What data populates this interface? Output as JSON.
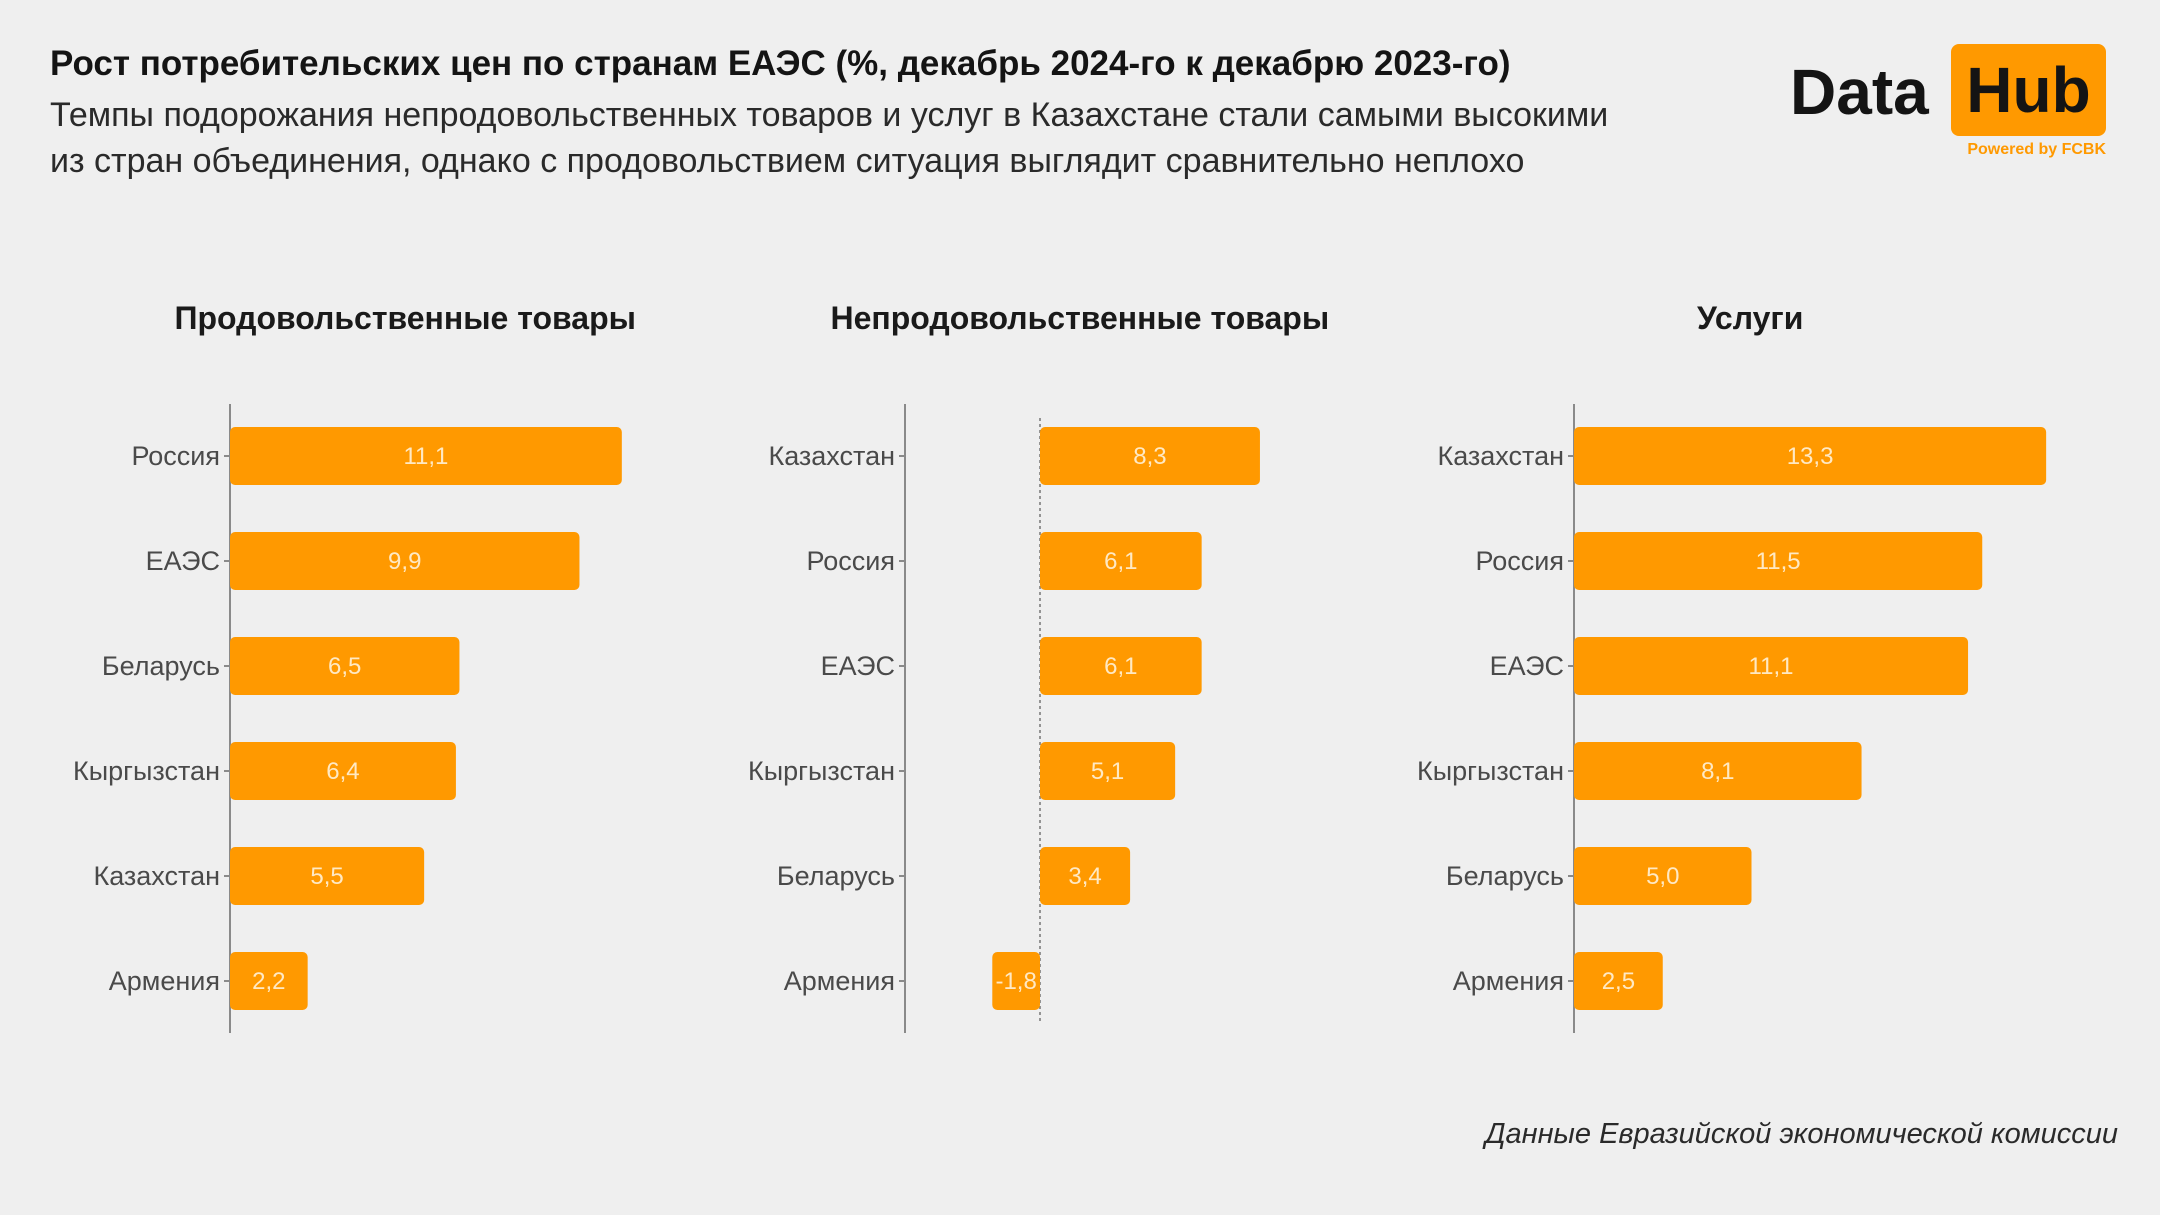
{
  "header": {
    "title": "Рост потребительских цен по странам ЕАЭС (%, декабрь 2024-го к декабрю 2023-го)",
    "subtitle_line1": "Темпы подорожания непродовольственных товаров и услуг в Казахстане стали самыми высокими",
    "subtitle_line2": "из стран объединения, однако с продовольствием ситуация выглядит сравнительно неплохо"
  },
  "logo": {
    "word1": "Data",
    "word2": "Hub",
    "powered": "Powered by FCBK"
  },
  "colors": {
    "bar": "#ff9900",
    "axis": "#8a8a8a",
    "background": "#efefef"
  },
  "chart_data": [
    {
      "type": "bar",
      "orientation": "horizontal",
      "title": "Продовольственные товары",
      "categories": [
        "Россия",
        "ЕАЭС",
        "Беларусь",
        "Кыргызстан",
        "Казахстан",
        "Армения"
      ],
      "values": [
        11.1,
        9.9,
        6.5,
        6.4,
        5.5,
        2.2
      ],
      "value_labels": [
        "11,1",
        "9,9",
        "6,5",
        "6,4",
        "5,5",
        "2,2"
      ]
    },
    {
      "type": "bar",
      "orientation": "horizontal",
      "title": "Непродовольственные товары",
      "categories": [
        "Казахстан",
        "Россия",
        "ЕАЭС",
        "Кыргызстан",
        "Беларусь",
        "Армения"
      ],
      "values": [
        8.3,
        6.1,
        6.1,
        5.1,
        3.4,
        -1.8
      ],
      "value_labels": [
        "8,3",
        "6,1",
        "6,1",
        "5,1",
        "3,4",
        "-1,8"
      ]
    },
    {
      "type": "bar",
      "orientation": "horizontal",
      "title": "Услуги",
      "categories": [
        "Казахстан",
        "Россия",
        "ЕАЭС",
        "Кыргызстан",
        "Беларусь",
        "Армения"
      ],
      "values": [
        13.3,
        11.5,
        11.1,
        8.1,
        5.0,
        2.5
      ],
      "value_labels": [
        "13,3",
        "11,5",
        "11,1",
        "8,1",
        "5,0",
        "2,5"
      ]
    }
  ],
  "source": "Данные Евразийской экономической комиссии"
}
